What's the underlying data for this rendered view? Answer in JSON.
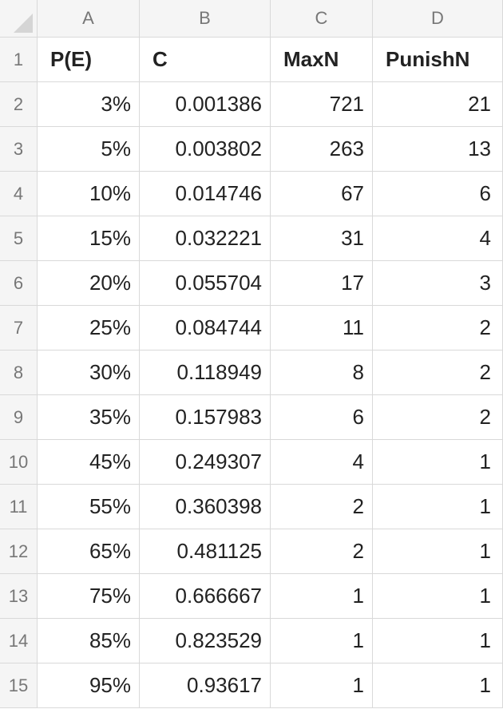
{
  "columns": [
    "A",
    "B",
    "C",
    "D"
  ],
  "row_numbers": [
    "1",
    "2",
    "3",
    "4",
    "5",
    "6",
    "7",
    "8",
    "9",
    "10",
    "11",
    "12",
    "13",
    "14",
    "15"
  ],
  "header_row": [
    "P(E)",
    "C",
    "MaxN",
    "PunishN"
  ],
  "rows": [
    [
      "3%",
      "0.001386",
      "721",
      "21"
    ],
    [
      "5%",
      "0.003802",
      "263",
      "13"
    ],
    [
      "10%",
      "0.014746",
      "67",
      "6"
    ],
    [
      "15%",
      "0.032221",
      "31",
      "4"
    ],
    [
      "20%",
      "0.055704",
      "17",
      "3"
    ],
    [
      "25%",
      "0.084744",
      "11",
      "2"
    ],
    [
      "30%",
      "0.118949",
      "8",
      "2"
    ],
    [
      "35%",
      "0.157983",
      "6",
      "2"
    ],
    [
      "45%",
      "0.249307",
      "4",
      "1"
    ],
    [
      "55%",
      "0.360398",
      "2",
      "1"
    ],
    [
      "65%",
      "0.481125",
      "2",
      "1"
    ],
    [
      "75%",
      "0.666667",
      "1",
      "1"
    ],
    [
      "85%",
      "0.823529",
      "1",
      "1"
    ],
    [
      "95%",
      "0.93617",
      "1",
      "1"
    ]
  ]
}
